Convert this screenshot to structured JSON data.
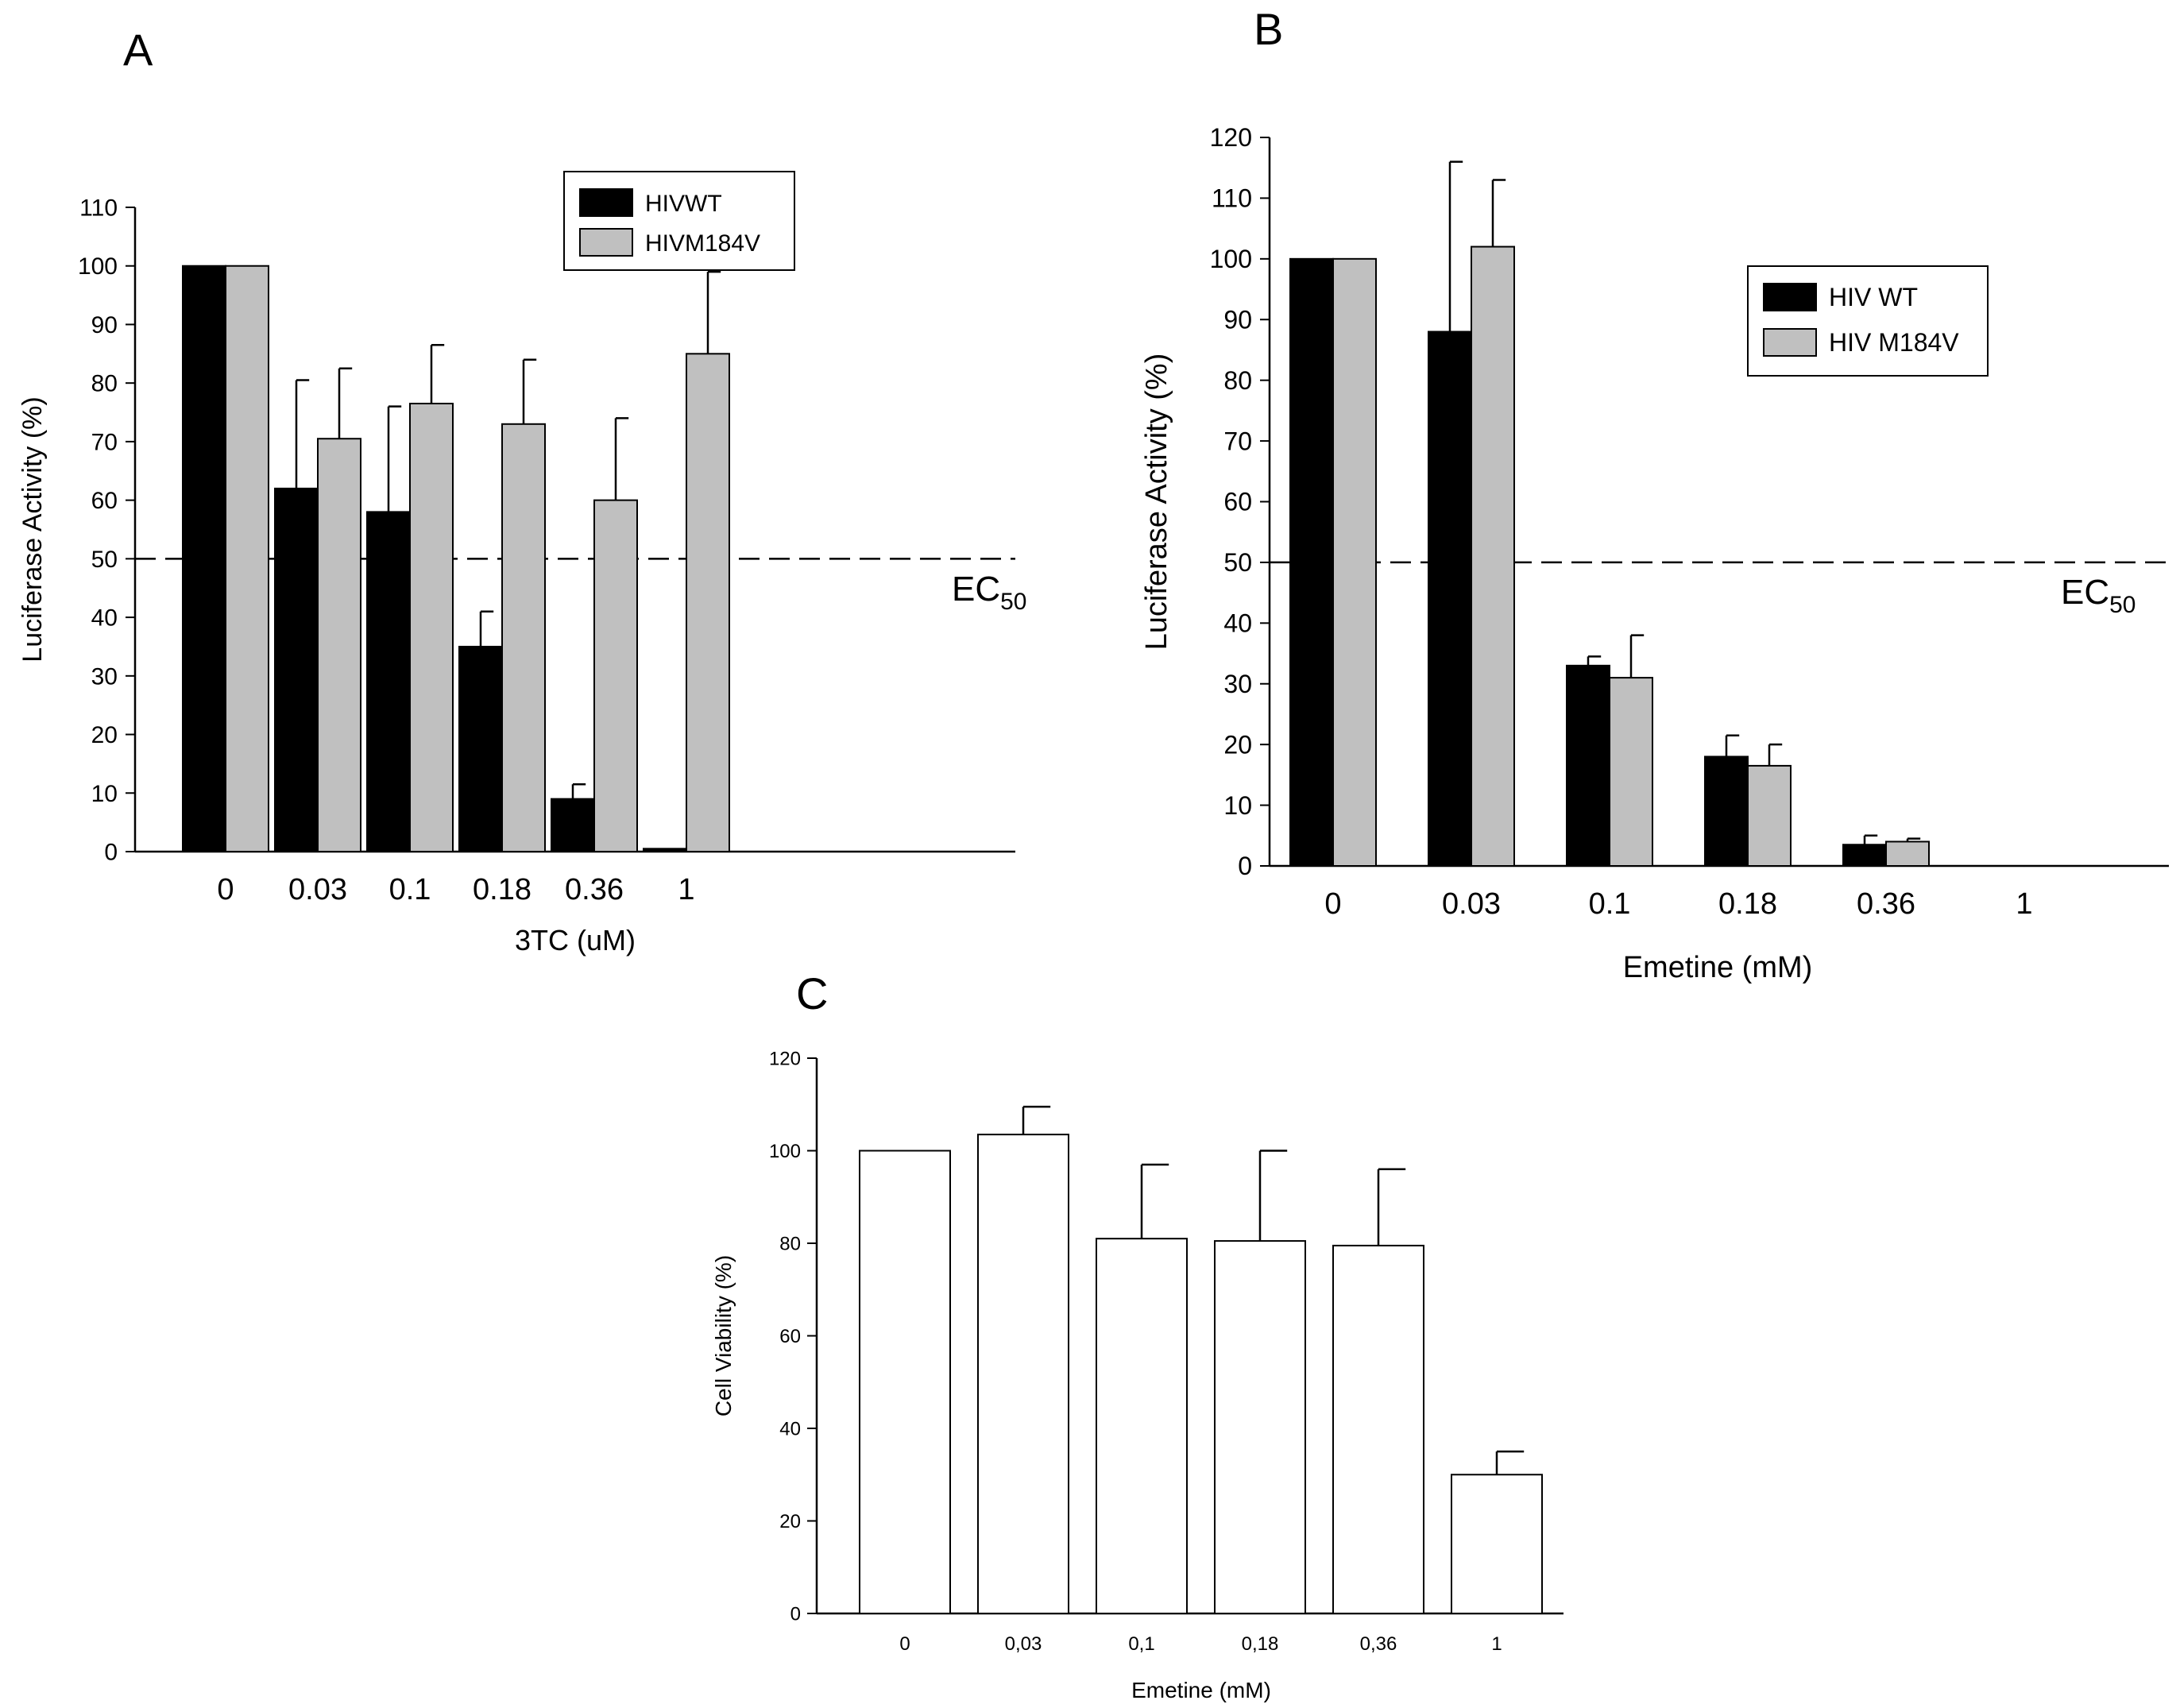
{
  "figure": {
    "panel_labels": [
      "A",
      "B",
      "C"
    ]
  },
  "colors": {
    "wt": "#000000",
    "m184v": "#c0c0c0",
    "viability": "#ffffff",
    "axis": "#000000"
  },
  "chart_data": [
    {
      "panel": "A",
      "type": "bar",
      "title": "",
      "xlabel": "3TC (uM)",
      "ylabel": "Luciferase Activity (%)",
      "categories": [
        "0",
        "0.03",
        "0.1",
        "0.18",
        "0.36",
        "1"
      ],
      "ylim": [
        0,
        110
      ],
      "yticks": [
        0,
        10,
        20,
        30,
        40,
        50,
        60,
        70,
        80,
        90,
        100,
        110
      ],
      "series": [
        {
          "name": "HIVWT",
          "color": "#000000",
          "values": [
            100,
            62,
            58,
            35,
            9,
            0.5
          ],
          "errors": [
            0,
            18.5,
            18,
            6,
            2.5,
            0
          ]
        },
        {
          "name": "HIVM184V",
          "color": "#c0c0c0",
          "values": [
            100,
            70.5,
            76.5,
            73,
            60,
            85
          ],
          "errors": [
            0,
            12,
            10,
            11,
            14,
            14
          ]
        }
      ],
      "reference_line": {
        "value": 50,
        "label": "EC",
        "label_sub": "50"
      },
      "legend": {
        "placement": "top-right",
        "entries": [
          "HIVWT",
          "HIVM184V"
        ]
      }
    },
    {
      "panel": "B",
      "type": "bar",
      "title": "",
      "xlabel": "Emetine (mM)",
      "ylabel": "Luciferase Activity (%)",
      "categories": [
        "0",
        "0.03",
        "0.1",
        "0.18",
        "0.36",
        "1"
      ],
      "ylim": [
        0,
        120
      ],
      "yticks": [
        0,
        10,
        20,
        30,
        40,
        50,
        60,
        70,
        80,
        90,
        100,
        110,
        120
      ],
      "series": [
        {
          "name": "HIV WT",
          "color": "#000000",
          "values": [
            100,
            88,
            33,
            18,
            3.5,
            0
          ],
          "errors": [
            0,
            28,
            1.5,
            3.5,
            1.5,
            0
          ]
        },
        {
          "name": "HIV M184V",
          "color": "#c0c0c0",
          "values": [
            100,
            102,
            31,
            16.5,
            4,
            0
          ],
          "errors": [
            0,
            11,
            7,
            3.5,
            0.5,
            0
          ]
        }
      ],
      "reference_line": {
        "value": 50,
        "label": "EC",
        "label_sub": "50"
      },
      "legend": {
        "placement": "right",
        "entries": [
          "HIV WT",
          "HIV M184V"
        ]
      }
    },
    {
      "panel": "C",
      "type": "bar",
      "title": "",
      "xlabel": "Emetine (mM)",
      "ylabel": "Cell Viability (%)",
      "categories": [
        "0",
        "0,03",
        "0,1",
        "0,18",
        "0,36",
        "1"
      ],
      "ylim": [
        0,
        120
      ],
      "yticks": [
        0,
        20,
        40,
        60,
        80,
        100,
        120
      ],
      "series": [
        {
          "name": "Cell Viability",
          "color": "#ffffff",
          "values": [
            100,
            103.5,
            81,
            80.5,
            79.5,
            30
          ],
          "errors": [
            0,
            6,
            16,
            19.5,
            16.5,
            5
          ]
        }
      ]
    }
  ]
}
